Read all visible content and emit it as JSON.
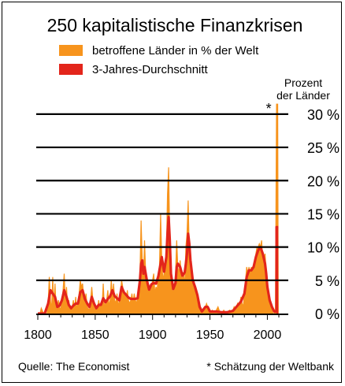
{
  "chart_data": {
    "type": "area",
    "title": "250 kapitalistische Finanzkrisen",
    "ylabel": "Prozent der Länder",
    "ylabel_lines": [
      "Prozent",
      "der Länder"
    ],
    "xlim": [
      1800,
      2010
    ],
    "ylim": [
      0,
      32
    ],
    "x_ticks": [
      1800,
      1850,
      1900,
      1950,
      2000
    ],
    "x_tick_labels": [
      "1800",
      "1850",
      "1900",
      "1950",
      "2000"
    ],
    "y_ticks": [
      0,
      5,
      10,
      15,
      20,
      25,
      30
    ],
    "y_tick_labels": [
      "0 %",
      "5 %",
      "10 %",
      "15 %",
      "20 %",
      "25 %",
      "30 %"
    ],
    "grid": "horizontal",
    "legend_position": "top-center",
    "annotation_marker": "*",
    "series": [
      {
        "name": "betroffene Länder in % der Welt",
        "color": "#f7941d",
        "style": "filled-area",
        "points": [
          [
            1800,
            0
          ],
          [
            1802,
            0
          ],
          [
            1803,
            0.8
          ],
          [
            1805,
            0
          ],
          [
            1808,
            0
          ],
          [
            1809,
            1.5
          ],
          [
            1810,
            5.5
          ],
          [
            1811,
            2
          ],
          [
            1812,
            0.5
          ],
          [
            1813,
            5.5
          ],
          [
            1814,
            1
          ],
          [
            1815,
            4.5
          ],
          [
            1816,
            0.5
          ],
          [
            1817,
            1
          ],
          [
            1818,
            2
          ],
          [
            1819,
            1
          ],
          [
            1820,
            0.5
          ],
          [
            1821,
            2
          ],
          [
            1822,
            3.5
          ],
          [
            1823,
            6
          ],
          [
            1824,
            1.5
          ],
          [
            1825,
            4
          ],
          [
            1826,
            1
          ],
          [
            1827,
            2
          ],
          [
            1828,
            0.5
          ],
          [
            1830,
            1
          ],
          [
            1831,
            2
          ],
          [
            1832,
            0.5
          ],
          [
            1833,
            2.5
          ],
          [
            1834,
            0.5
          ],
          [
            1836,
            3
          ],
          [
            1837,
            5
          ],
          [
            1838,
            4
          ],
          [
            1839,
            4.5
          ],
          [
            1840,
            2.5
          ],
          [
            1841,
            1.5
          ],
          [
            1842,
            3
          ],
          [
            1843,
            1
          ],
          [
            1845,
            0.5
          ],
          [
            1846,
            2
          ],
          [
            1847,
            4
          ],
          [
            1848,
            2
          ],
          [
            1849,
            1
          ],
          [
            1850,
            0.5
          ],
          [
            1851,
            1
          ],
          [
            1852,
            0.5
          ],
          [
            1853,
            2
          ],
          [
            1854,
            1
          ],
          [
            1855,
            1.5
          ],
          [
            1856,
            1
          ],
          [
            1857,
            4.5
          ],
          [
            1858,
            1
          ],
          [
            1859,
            1.5
          ],
          [
            1860,
            2
          ],
          [
            1861,
            3.5
          ],
          [
            1862,
            1
          ],
          [
            1863,
            2
          ],
          [
            1864,
            5
          ],
          [
            1865,
            2.5
          ],
          [
            1866,
            4.5
          ],
          [
            1867,
            2
          ],
          [
            1868,
            1.5
          ],
          [
            1869,
            3
          ],
          [
            1870,
            1
          ],
          [
            1871,
            2
          ],
          [
            1872,
            3
          ],
          [
            1873,
            5
          ],
          [
            1874,
            4
          ],
          [
            1875,
            2.5
          ],
          [
            1876,
            3
          ],
          [
            1877,
            2
          ],
          [
            1878,
            3.5
          ],
          [
            1879,
            2
          ],
          [
            1880,
            1.5
          ],
          [
            1881,
            2
          ],
          [
            1882,
            3
          ],
          [
            1883,
            1.5
          ],
          [
            1884,
            3
          ],
          [
            1885,
            2
          ],
          [
            1886,
            1.5
          ],
          [
            1887,
            2.5
          ],
          [
            1888,
            3
          ],
          [
            1889,
            6
          ],
          [
            1890,
            14
          ],
          [
            1891,
            8
          ],
          [
            1892,
            5
          ],
          [
            1893,
            11
          ],
          [
            1894,
            6
          ],
          [
            1895,
            5
          ],
          [
            1896,
            4
          ],
          [
            1897,
            3
          ],
          [
            1898,
            4
          ],
          [
            1899,
            4
          ],
          [
            1900,
            5
          ],
          [
            1901,
            6
          ],
          [
            1902,
            3
          ],
          [
            1903,
            4
          ],
          [
            1904,
            3.5
          ],
          [
            1905,
            6
          ],
          [
            1906,
            7
          ],
          [
            1907,
            15
          ],
          [
            1908,
            8
          ],
          [
            1909,
            5
          ],
          [
            1910,
            6
          ],
          [
            1911,
            7
          ],
          [
            1912,
            9
          ],
          [
            1913,
            18
          ],
          [
            1914,
            22
          ],
          [
            1915,
            10
          ],
          [
            1916,
            5
          ],
          [
            1917,
            4
          ],
          [
            1918,
            3
          ],
          [
            1919,
            4
          ],
          [
            1920,
            6
          ],
          [
            1921,
            11
          ],
          [
            1922,
            7
          ],
          [
            1923,
            6
          ],
          [
            1924,
            8
          ],
          [
            1925,
            6
          ],
          [
            1926,
            5
          ],
          [
            1927,
            6
          ],
          [
            1928,
            4
          ],
          [
            1929,
            10
          ],
          [
            1930,
            12
          ],
          [
            1931,
            17
          ],
          [
            1932,
            9
          ],
          [
            1933,
            6
          ],
          [
            1934,
            6
          ],
          [
            1935,
            4
          ],
          [
            1936,
            5
          ],
          [
            1937,
            4
          ],
          [
            1938,
            3
          ],
          [
            1939,
            3
          ],
          [
            1940,
            1.5
          ],
          [
            1941,
            0.5
          ],
          [
            1943,
            0
          ],
          [
            1945,
            0.5
          ],
          [
            1946,
            1
          ],
          [
            1947,
            1.5
          ],
          [
            1948,
            1
          ],
          [
            1949,
            0.5
          ],
          [
            1950,
            0
          ],
          [
            1952,
            0.5
          ],
          [
            1954,
            0
          ],
          [
            1957,
            1
          ],
          [
            1958,
            0.5
          ],
          [
            1960,
            0
          ],
          [
            1962,
            0.5
          ],
          [
            1964,
            0
          ],
          [
            1967,
            0.5
          ],
          [
            1969,
            0
          ],
          [
            1971,
            1
          ],
          [
            1972,
            0.5
          ],
          [
            1974,
            1.5
          ],
          [
            1975,
            1
          ],
          [
            1976,
            1.5
          ],
          [
            1977,
            2.5
          ],
          [
            1978,
            1.5
          ],
          [
            1979,
            1
          ],
          [
            1980,
            3
          ],
          [
            1981,
            5
          ],
          [
            1982,
            7
          ],
          [
            1983,
            6
          ],
          [
            1984,
            7
          ],
          [
            1985,
            6
          ],
          [
            1986,
            7
          ],
          [
            1987,
            6.5
          ],
          [
            1988,
            7
          ],
          [
            1989,
            8
          ],
          [
            1990,
            9
          ],
          [
            1991,
            10
          ],
          [
            1992,
            10
          ],
          [
            1993,
            10.5
          ],
          [
            1994,
            10
          ],
          [
            1995,
            11
          ],
          [
            1996,
            8
          ],
          [
            1997,
            8
          ],
          [
            1998,
            9
          ],
          [
            1999,
            6
          ],
          [
            2000,
            2
          ],
          [
            2001,
            3
          ],
          [
            2002,
            1.5
          ],
          [
            2003,
            1
          ],
          [
            2004,
            0.5
          ],
          [
            2005,
            0
          ],
          [
            2006,
            0
          ],
          [
            2007,
            0.5
          ],
          [
            2008,
            31.5
          ],
          [
            2009,
            31.5
          ],
          [
            2009.5,
            0
          ]
        ]
      },
      {
        "name": "3-Jahres-Durchschnitt",
        "color": "#e3251b",
        "style": "thick-line",
        "points": [
          [
            1800,
            0
          ],
          [
            1803,
            0
          ],
          [
            1806,
            0
          ],
          [
            1809,
            1.5
          ],
          [
            1811,
            3.5
          ],
          [
            1813,
            3
          ],
          [
            1815,
            2.5
          ],
          [
            1817,
            1
          ],
          [
            1819,
            1.2
          ],
          [
            1821,
            2
          ],
          [
            1823,
            3.5
          ],
          [
            1825,
            2.5
          ],
          [
            1827,
            1.3
          ],
          [
            1829,
            0.8
          ],
          [
            1831,
            1.2
          ],
          [
            1833,
            1.5
          ],
          [
            1835,
            1.5
          ],
          [
            1837,
            3.2
          ],
          [
            1839,
            3.5
          ],
          [
            1841,
            2.2
          ],
          [
            1843,
            1.5
          ],
          [
            1845,
            1
          ],
          [
            1847,
            2.5
          ],
          [
            1849,
            1.5
          ],
          [
            1851,
            0.8
          ],
          [
            1853,
            1.3
          ],
          [
            1855,
            1.3
          ],
          [
            1857,
            2.3
          ],
          [
            1859,
            1.7
          ],
          [
            1861,
            2.2
          ],
          [
            1863,
            2.6
          ],
          [
            1865,
            3.5
          ],
          [
            1867,
            2.6
          ],
          [
            1869,
            2.3
          ],
          [
            1871,
            2
          ],
          [
            1873,
            4
          ],
          [
            1875,
            3.2
          ],
          [
            1877,
            2.8
          ],
          [
            1879,
            2.4
          ],
          [
            1881,
            2.2
          ],
          [
            1883,
            2.2
          ],
          [
            1885,
            2.2
          ],
          [
            1887,
            2.3
          ],
          [
            1889,
            5
          ],
          [
            1890,
            7.5
          ],
          [
            1891,
            8
          ],
          [
            1892,
            6
          ],
          [
            1893,
            7
          ],
          [
            1895,
            5
          ],
          [
            1897,
            3.6
          ],
          [
            1899,
            4.4
          ],
          [
            1901,
            4.6
          ],
          [
            1903,
            4.5
          ],
          [
            1905,
            5.6
          ],
          [
            1907,
            7.5
          ],
          [
            1908,
            8.5
          ],
          [
            1910,
            6.3
          ],
          [
            1912,
            8.5
          ],
          [
            1913,
            12
          ],
          [
            1914,
            14.5
          ],
          [
            1915,
            11
          ],
          [
            1916,
            6
          ],
          [
            1918,
            3.7
          ],
          [
            1920,
            4.6
          ],
          [
            1921,
            7
          ],
          [
            1922,
            7.5
          ],
          [
            1924,
            7
          ],
          [
            1926,
            5.7
          ],
          [
            1928,
            6.2
          ],
          [
            1929,
            7.5
          ],
          [
            1930,
            9
          ],
          [
            1931,
            12
          ],
          [
            1932,
            10.5
          ],
          [
            1933,
            8
          ],
          [
            1935,
            5
          ],
          [
            1937,
            4
          ],
          [
            1939,
            2.8
          ],
          [
            1941,
            1
          ],
          [
            1943,
            0.3
          ],
          [
            1946,
            1
          ],
          [
            1948,
            1
          ],
          [
            1950,
            0.3
          ],
          [
            1955,
            0.3
          ],
          [
            1960,
            0.2
          ],
          [
            1965,
            0.2
          ],
          [
            1970,
            0.4
          ],
          [
            1974,
            1.2
          ],
          [
            1977,
            1.8
          ],
          [
            1980,
            3
          ],
          [
            1982,
            5.5
          ],
          [
            1984,
            6.5
          ],
          [
            1986,
            6.5
          ],
          [
            1988,
            7
          ],
          [
            1990,
            8.5
          ],
          [
            1992,
            9.5
          ],
          [
            1994,
            10
          ],
          [
            1996,
            9
          ],
          [
            1998,
            7.5
          ],
          [
            1999,
            6
          ],
          [
            2000,
            4
          ],
          [
            2001,
            3
          ],
          [
            2002,
            2
          ],
          [
            2004,
            1
          ],
          [
            2006,
            0.3
          ],
          [
            2008,
            0.3
          ],
          [
            2008,
            13
          ],
          [
            2009,
            13
          ],
          [
            2009.5,
            13
          ]
        ]
      }
    ]
  },
  "footer": {
    "source": "Quelle: The Economist",
    "note": "* Schätzung der Weltbank"
  }
}
